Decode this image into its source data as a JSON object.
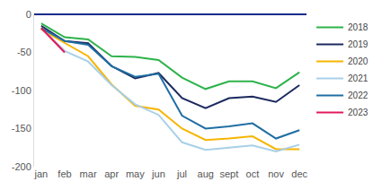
{
  "chart_data": {
    "type": "line",
    "categories": [
      "jan",
      "feb",
      "mar",
      "apr",
      "may",
      "jun",
      "jul",
      "aug",
      "sept",
      "oct",
      "nov",
      "dec"
    ],
    "series": [
      {
        "name": "2018",
        "color": "#2db34a",
        "values": [
          -12,
          -30,
          -33,
          -55,
          -56,
          -60,
          -83,
          -98,
          -88,
          -88,
          -97,
          -76
        ]
      },
      {
        "name": "2019",
        "color": "#1b2a5e",
        "values": [
          -15,
          -35,
          -38,
          -68,
          -84,
          -77,
          -110,
          -123,
          -110,
          -108,
          -115,
          -93
        ]
      },
      {
        "name": "2020",
        "color": "#f7b500",
        "values": [
          -20,
          -38,
          -55,
          -92,
          -120,
          -125,
          -150,
          -165,
          -163,
          -160,
          -177,
          -177
        ]
      },
      {
        "name": "2021",
        "color": "#a8d0e8",
        "values": [
          -18,
          -48,
          -62,
          -93,
          -118,
          -132,
          -168,
          -178,
          -175,
          -172,
          -180,
          -171
        ]
      },
      {
        "name": "2022",
        "color": "#1f6ea3",
        "values": [
          -18,
          -35,
          -40,
          -68,
          -82,
          -78,
          -133,
          -150,
          -147,
          -143,
          -163,
          -152
        ]
      },
      {
        "name": "2023",
        "color": "#e2195b",
        "values": [
          -18,
          -50,
          null,
          null,
          null,
          null,
          null,
          null,
          null,
          null,
          null,
          null
        ]
      }
    ],
    "ylim": [
      -200,
      0
    ],
    "yticks": [
      0,
      -50,
      -100,
      -150,
      -200
    ],
    "grid": false,
    "legend": "right"
  }
}
